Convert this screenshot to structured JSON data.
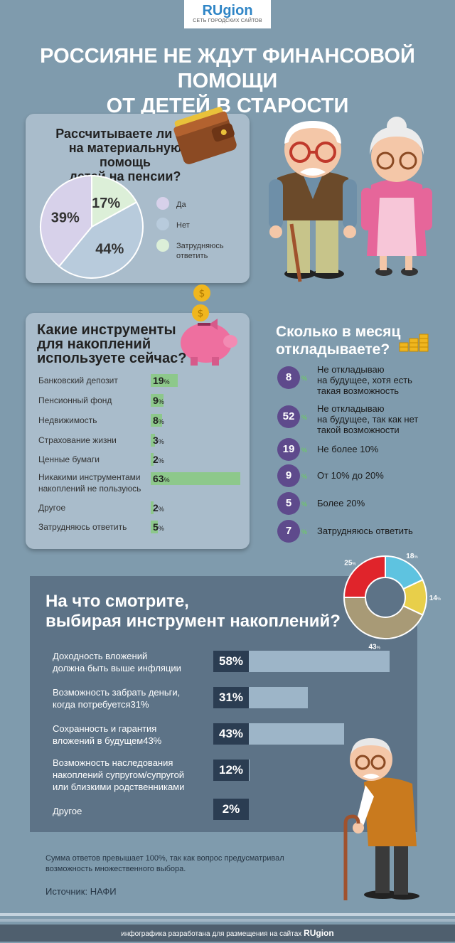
{
  "logo": {
    "name": "RUgion",
    "subtitle": "СЕТЬ ГОРОДСКИХ САЙТОВ"
  },
  "title_line1": "РОССИЯНЕ НЕ ЖДУТ ФИНАНСОВОЙ ПОМОЩИ",
  "title_line2": "ОТ ДЕТЕЙ В СТАРОСТИ",
  "colors": {
    "background": "#7f9bad",
    "panel": "#a9bccb",
    "dark_panel": "#5d7387",
    "bar_green": "#8dc88b",
    "circle": "#5e4a8c"
  },
  "pension_help": {
    "question": [
      "Рассчитываете ли вы",
      "на материальную помощь",
      "детей на пенсии?"
    ],
    "chart_data": {
      "type": "pie",
      "labels": [
        "Да",
        "Нет",
        "Затрудняюсь ответить"
      ],
      "values": [
        39,
        44,
        17
      ],
      "value_labels": [
        "39%",
        "44%",
        "17%"
      ],
      "colors": [
        "#d7d1ea",
        "#b8cbdc",
        "#dcefd8"
      ]
    },
    "legend": [
      {
        "label": "Да",
        "color": "#d7d1ea"
      },
      {
        "label": "Нет",
        "color": "#b8cbdc"
      },
      {
        "label": "Затрудняюсь",
        "label2": "ответить",
        "color": "#dcefd8"
      }
    ]
  },
  "instruments": {
    "question": [
      "Какие инструменты",
      "для накоплений",
      "используете сейчас?"
    ],
    "chart_data": {
      "type": "bar",
      "categories": [
        "Банковский депозит",
        "Пенсионный фонд",
        "Недвижимость",
        "Страхование жизни",
        "Ценные бумаги",
        "Никакими инструментами накоплений не пользуюсь",
        "Другое",
        "Затрудняюсь ответить"
      ],
      "values": [
        19,
        9,
        8,
        3,
        2,
        63,
        2,
        5
      ]
    },
    "rows": [
      {
        "label": "Банковский депозит",
        "value": "19"
      },
      {
        "label": "Пенсионный фонд",
        "value": "9"
      },
      {
        "label": "Недвижимость",
        "value": "8"
      },
      {
        "label": "Страхование жизни",
        "value": "3"
      },
      {
        "label": "Ценные бумаги",
        "value": "2"
      },
      {
        "label": "Никакими инструментами",
        "label2": "накоплений не пользуюсь",
        "value": "63"
      },
      {
        "label": "Другое",
        "value": "2"
      },
      {
        "label": "Затрудняюсь ответить",
        "value": "5"
      }
    ],
    "pct": "%"
  },
  "savings": {
    "question": [
      "Сколько в месяц",
      "откладываете?"
    ],
    "chart_data": {
      "type": "table",
      "categories": [
        "Не откладываю на будущее, хотя есть такая возможность",
        "Не откладываю на будущее, так как нет такой возможности",
        "Не более 10%",
        "От 10% до 20%",
        "Более 20%",
        "Затрудняюсь ответить"
      ],
      "values": [
        8,
        52,
        19,
        9,
        5,
        7
      ]
    },
    "rows": [
      {
        "value": "8",
        "lines": [
          "Не откладываю",
          "на будущее, хотя есть",
          "такая возможность"
        ]
      },
      {
        "value": "52",
        "lines": [
          "Не откладываю",
          "на будущее, так как нет",
          "такой возможности"
        ]
      },
      {
        "value": "19",
        "lines": [
          "Не более 10%"
        ]
      },
      {
        "value": "9",
        "lines": [
          "От 10% до 20%"
        ]
      },
      {
        "value": "5",
        "lines": [
          "Более 20%"
        ]
      },
      {
        "value": "7",
        "lines": [
          "Затрудняюсь ответить"
        ]
      }
    ],
    "pct": "%"
  },
  "criteria": {
    "question": [
      "На что смотрите,",
      "выбирая инструмент накоплений?"
    ],
    "chart_data": {
      "type": "bar",
      "categories": [
        "Доходность вложений должна быть выше инфляции",
        "Возможность забрать деньги, когда потребуется",
        "Сохранность и гарантия вложений в будущем",
        "Возможность наследования накоплений супругом/супругой или близкими родственниками",
        "Другое"
      ],
      "values": [
        58,
        31,
        43,
        12,
        2
      ]
    },
    "rows": [
      {
        "lines": [
          "Доходность вложений",
          "должна быть выше инфляции"
        ],
        "value": "58%"
      },
      {
        "lines": [
          "Возможность забрать деньги,",
          "когда потребуется31%"
        ],
        "value": "31%"
      },
      {
        "lines": [
          "Сохранность и гарантия",
          "вложений в будущем43%"
        ],
        "value": "43%"
      },
      {
        "lines": [
          "Возможность наследования",
          "накоплений супругом/супругой",
          "или близкими родственниками"
        ],
        "value": "12%"
      },
      {
        "lines": [
          "Другое"
        ],
        "value": "2%"
      }
    ]
  },
  "donut": {
    "chart_data": {
      "type": "pie",
      "values": [
        25,
        18,
        14,
        43
      ],
      "colors": [
        "#e0242b",
        "#5ec3e0",
        "#e8cf4a",
        "#a89a76"
      ]
    },
    "labels": [
      "25",
      "18",
      "14",
      "43"
    ],
    "pct": "%"
  },
  "note_line1": "Сумма ответов превышает 100%, так как вопрос предусматривал",
  "note_line2": "возможность множественного выбора.",
  "source": "Источник: НАФИ",
  "footer_text": "инфографика разработана для размещения на сайтах",
  "footer_brand": "RUgion"
}
